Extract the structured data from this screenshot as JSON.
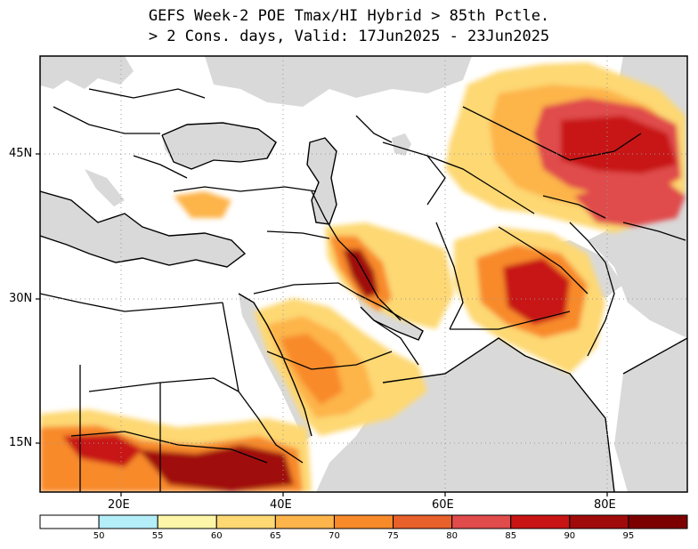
{
  "title": {
    "line1": "GEFS Week-2 POE Tmax/HI Hybrid > 85th Pctle.",
    "line2": "> 2 Cons. days, Valid: 17Jun2025 - 23Jun2025"
  },
  "axes": {
    "lat_labels": [
      "45N",
      "30N",
      "15N"
    ],
    "lon_labels": [
      "20E",
      "40E",
      "60E",
      "80E"
    ]
  },
  "colorbar": {
    "labels": [
      "50",
      "55",
      "60",
      "65",
      "70",
      "75",
      "80",
      "85",
      "90",
      "95"
    ],
    "colors": [
      "#ffffff",
      "#b4eef8",
      "#fdf6a8",
      "#fdd873",
      "#fdb44a",
      "#f88a2a",
      "#e8602a",
      "#e04b4b",
      "#c81414",
      "#a00a0a",
      "#7d0000"
    ]
  },
  "colors": {
    "land": "#ffffff",
    "water": "#d9d9d9",
    "border": "#000000",
    "grid": "#999999"
  }
}
